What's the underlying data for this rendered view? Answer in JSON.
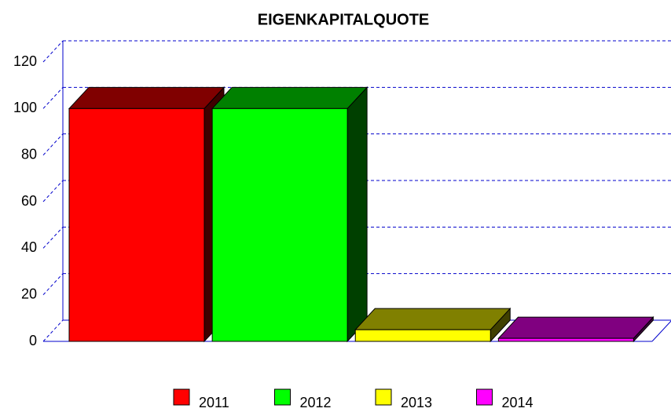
{
  "chart_data": {
    "type": "bar3d",
    "title": "EIGENKAPITALQUOTE",
    "categories": [
      "2011",
      "2012",
      "2013",
      "2014"
    ],
    "values": [
      100,
      100,
      5,
      1.3
    ],
    "colors": [
      "#ff0000",
      "#00ff00",
      "#ffff00",
      "#ff00ff"
    ],
    "ylim": [
      0,
      120
    ],
    "yticks": [
      0,
      20,
      40,
      60,
      80,
      100,
      120
    ],
    "grid": true,
    "legend": "bottom"
  }
}
